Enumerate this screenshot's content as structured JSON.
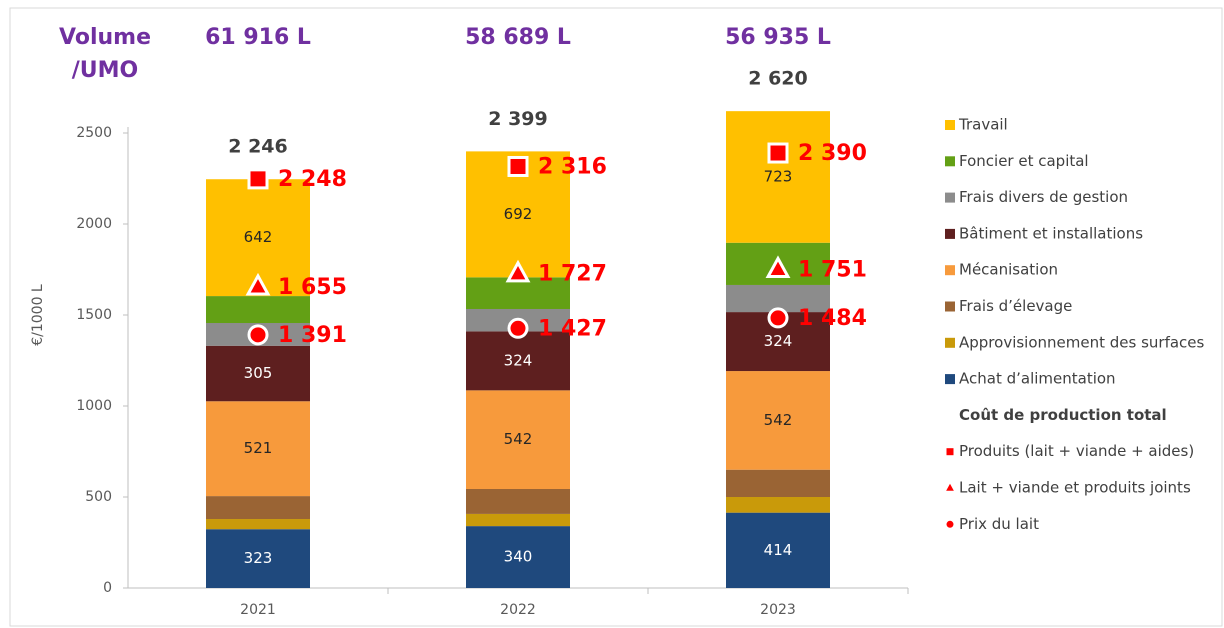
{
  "chart_data": {
    "type": "bar",
    "stacked": true,
    "ylabel": "€/1000 L",
    "volume_title": [
      "Volume",
      "/UMO"
    ],
    "volume": {
      "values": [
        61916,
        58689,
        56935
      ],
      "value_labels": [
        "61 916 L",
        "58 689 L",
        "56 935 L"
      ]
    },
    "categories": [
      "2021",
      "2022",
      "2023"
    ],
    "ylim": [
      0,
      3000
    ],
    "yticks": [
      0,
      500,
      1000,
      1500,
      2000,
      2500
    ],
    "series": [
      {
        "name": "Achat d’alimentation",
        "color": "#1f497d",
        "values": [
          323,
          340,
          414
        ],
        "labeled": true,
        "label_color": "#ffffff"
      },
      {
        "name": "Approvisionnement des surfaces",
        "color": "#c99a0a",
        "values": [
          56,
          67,
          86
        ]
      },
      {
        "name": "Frais d’élevage",
        "color": "#9a6434",
        "values": [
          126,
          137,
          150
        ]
      },
      {
        "name": "Mécanisation",
        "color": "#f79a3c",
        "values": [
          521,
          542,
          542
        ],
        "labeled": true,
        "label_color": "#262626"
      },
      {
        "name": "Bâtiment et installations",
        "color": "#5e1f1f",
        "values": [
          305,
          324,
          324
        ],
        "labeled": true,
        "label_color": "#ffffff"
      },
      {
        "name": "Frais divers de gestion",
        "color": "#8c8c8c",
        "values": [
          125,
          123,
          149
        ]
      },
      {
        "name": "Foncier et capital",
        "color": "#63a015",
        "values": [
          148,
          174,
          232
        ]
      },
      {
        "name": "Travail",
        "color": "#ffc000",
        "values": [
          642,
          692,
          723
        ],
        "labeled": true,
        "label_color": "#262626"
      }
    ],
    "totals": {
      "name": "Coût de production total",
      "values": [
        2246,
        2399,
        2620
      ],
      "value_labels": [
        "2 246",
        "2 399",
        "2 620"
      ]
    },
    "markers": [
      {
        "name": "Produits (lait + viande + aides)",
        "marker": "square",
        "color": "#ff0000",
        "values": [
          2248,
          2316,
          2390
        ],
        "value_labels": [
          "2 248",
          "2 316",
          "2 390"
        ]
      },
      {
        "name": "Lait + viande et produits joints",
        "marker": "triangle",
        "color": "#ff0000",
        "values": [
          1655,
          1727,
          1751
        ],
        "value_labels": [
          "1 655",
          "1 727",
          "1 751"
        ]
      },
      {
        "name": "Prix du lait",
        "marker": "circle",
        "color": "#ff0000",
        "values": [
          1391,
          1427,
          1484
        ],
        "value_labels": [
          "1 391",
          "1 427",
          "1 484"
        ]
      }
    ]
  }
}
